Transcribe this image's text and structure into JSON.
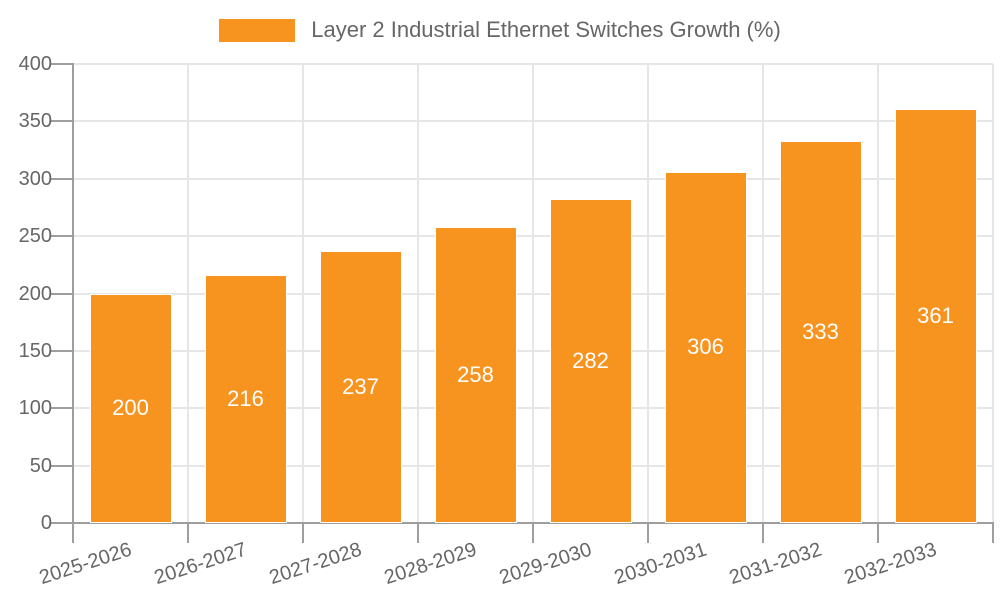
{
  "chart_data": {
    "type": "bar",
    "title": "",
    "series_name": "Layer 2 Industrial Ethernet Switches Growth (%)",
    "categories": [
      "2025-2026",
      "2026-2027",
      "2027-2028",
      "2028-2029",
      "2029-2030",
      "2030-2031",
      "2031-2032",
      "2032-2033"
    ],
    "values": [
      200,
      216,
      237,
      258,
      282,
      306,
      333,
      361
    ],
    "yticks": [
      0,
      50,
      100,
      150,
      200,
      250,
      300,
      350,
      400
    ],
    "ylim": [
      0,
      400
    ],
    "xlabel": "",
    "ylabel": "",
    "grid": true,
    "legend_position": "top",
    "colors": {
      "bar": "#F6941F",
      "bar_border": "#FFFFFF",
      "value_label": "#FFFFFF",
      "grid_line": "#E6E6E6",
      "axis_line": "#9E9E9E",
      "tick_label": "#666666",
      "legend_text": "#666666",
      "background": "#FFFFFF"
    }
  }
}
